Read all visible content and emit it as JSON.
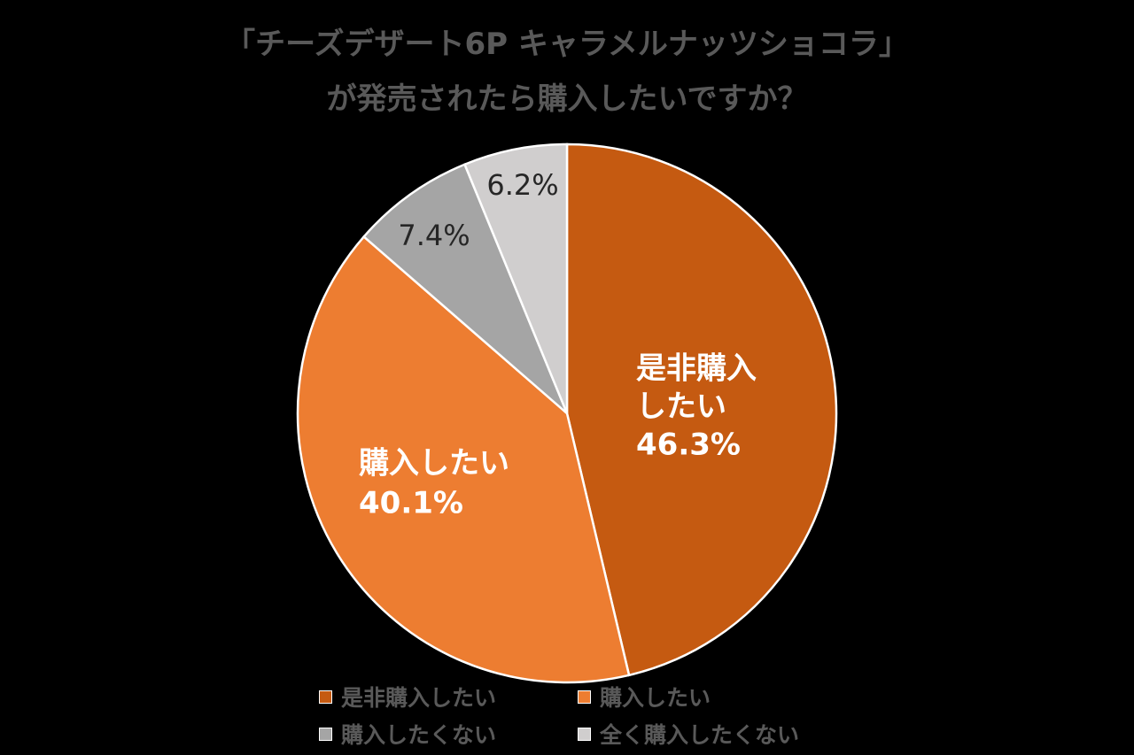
{
  "chart_data": {
    "type": "pie",
    "title_lines": [
      "「チーズデザート6P キャラメルナッツショコラ」",
      "が発売されたら購入したいですか？"
    ],
    "categories": [
      "是非購入したい",
      "購入したい",
      "購入したくない",
      "全く購入したくない"
    ],
    "values": [
      46.3,
      40.1,
      7.4,
      6.2
    ],
    "value_labels": [
      "46.3%",
      "40.1%",
      "7.4%",
      "6.2%"
    ],
    "slice_labels": [
      [
        "是非購入",
        "したい"
      ],
      [
        "購入したい"
      ],
      [],
      []
    ],
    "colors": [
      "#C55A11",
      "#ED7D31",
      "#A5A5A5",
      "#D0CECE"
    ],
    "label_colors": [
      "#FFFFFF",
      "#FFFFFF",
      "#262626",
      "#262626"
    ],
    "start_angle": "12 o'clock",
    "direction": "clockwise",
    "legend_position": "bottom"
  }
}
